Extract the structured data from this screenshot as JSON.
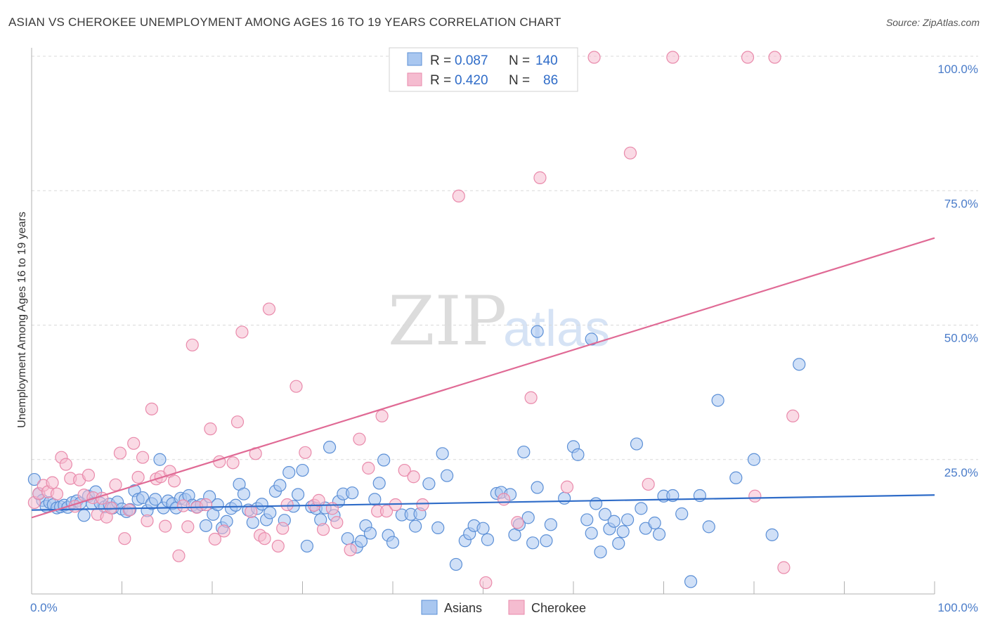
{
  "title": "ASIAN VS CHEROKEE UNEMPLOYMENT AMONG AGES 16 TO 19 YEARS CORRELATION CHART",
  "source": "Source: ZipAtlas.com",
  "watermark": {
    "zip": "ZIP",
    "atlas": "atlas"
  },
  "colors": {
    "asians_fill": "#a9c7f0",
    "asians_stroke": "#5b8fd6",
    "asians_line": "#2f6cc8",
    "cherokee_fill": "#f5bcd0",
    "cherokee_stroke": "#e98aab",
    "cherokee_line": "#e06a95",
    "tick_text": "#4a7cc9",
    "grid": "#d9d9d9"
  },
  "legend": {
    "asians": {
      "r_label": "R =",
      "r_value": "0.087",
      "n_label": "N =",
      "n_value": "140"
    },
    "cherokee": {
      "r_label": "R =",
      "r_value": "0.420",
      "n_label": "N =",
      "n_value": "86"
    }
  },
  "bottom_legend": {
    "asians": "Asians",
    "cherokee": "Cherokee"
  },
  "chart_data": {
    "type": "scatter",
    "title": "ASIAN VS CHEROKEE UNEMPLOYMENT AMONG AGES 16 TO 19 YEARS CORRELATION CHART",
    "xlabel": "",
    "ylabel": "Unemployment Among Ages 16 to 19 years",
    "xlim": [
      0,
      100
    ],
    "ylim": [
      0,
      100
    ],
    "x_tick_labels": [
      "0.0%",
      "100.0%"
    ],
    "y_ticks": [
      25,
      50,
      75,
      100
    ],
    "y_tick_labels": [
      "25.0%",
      "50.0%",
      "75.0%",
      "100.0%"
    ],
    "grid": "horizontal dashed",
    "legend_position": "top-center",
    "series": [
      {
        "name": "Asians",
        "trend": {
          "x": [
            0,
            100
          ],
          "y": [
            15.6,
            18.4
          ]
        },
        "points": [
          [
            0.3,
            21.3
          ],
          [
            0.8,
            18.6
          ],
          [
            1.2,
            17.4
          ],
          [
            1.6,
            16.3
          ],
          [
            2.0,
            17.0
          ],
          [
            2.4,
            16.6
          ],
          [
            2.8,
            16.0
          ],
          [
            3.2,
            16.2
          ],
          [
            3.6,
            16.5
          ],
          [
            4.0,
            16.1
          ],
          [
            4.5,
            17.0
          ],
          [
            5.0,
            17.3
          ],
          [
            5.4,
            16.9
          ],
          [
            5.8,
            14.6
          ],
          [
            6.3,
            18.2
          ],
          [
            6.7,
            16.8
          ],
          [
            7.1,
            19.0
          ],
          [
            7.6,
            16.9
          ],
          [
            8.1,
            16.2
          ],
          [
            8.6,
            16.7
          ],
          [
            9.0,
            16.0
          ],
          [
            9.5,
            17.1
          ],
          [
            10.0,
            15.8
          ],
          [
            10.5,
            15.3
          ],
          [
            10.9,
            15.7
          ],
          [
            11.4,
            19.2
          ],
          [
            11.8,
            17.6
          ],
          [
            12.3,
            17.9
          ],
          [
            12.8,
            15.5
          ],
          [
            13.3,
            16.8
          ],
          [
            13.7,
            17.6
          ],
          [
            14.2,
            25.0
          ],
          [
            14.6,
            16.0
          ],
          [
            15.1,
            17.3
          ],
          [
            15.6,
            16.8
          ],
          [
            16.0,
            16.0
          ],
          [
            16.5,
            17.8
          ],
          [
            17.0,
            17.6
          ],
          [
            17.4,
            18.3
          ],
          [
            17.8,
            16.5
          ],
          [
            18.3,
            16.2
          ],
          [
            18.8,
            16.6
          ],
          [
            19.3,
            12.7
          ],
          [
            19.7,
            18.1
          ],
          [
            20.1,
            14.8
          ],
          [
            20.6,
            16.6
          ],
          [
            21.1,
            12.3
          ],
          [
            21.6,
            13.5
          ],
          [
            22.1,
            15.9
          ],
          [
            22.6,
            16.5
          ],
          [
            23.0,
            20.4
          ],
          [
            23.5,
            18.6
          ],
          [
            24.0,
            15.6
          ],
          [
            24.5,
            13.3
          ],
          [
            25.0,
            15.9
          ],
          [
            25.5,
            16.7
          ],
          [
            26.0,
            13.8
          ],
          [
            26.4,
            15.1
          ],
          [
            27.0,
            19.1
          ],
          [
            27.5,
            20.2
          ],
          [
            28.0,
            13.7
          ],
          [
            28.5,
            22.6
          ],
          [
            29.0,
            16.3
          ],
          [
            29.5,
            18.5
          ],
          [
            30.0,
            23.0
          ],
          [
            30.5,
            8.9
          ],
          [
            31.0,
            16.2
          ],
          [
            31.5,
            15.9
          ],
          [
            32.0,
            13.8
          ],
          [
            32.5,
            16.0
          ],
          [
            33.0,
            27.3
          ],
          [
            33.5,
            14.6
          ],
          [
            34.0,
            17.2
          ],
          [
            34.5,
            18.6
          ],
          [
            35.0,
            10.3
          ],
          [
            35.5,
            18.8
          ],
          [
            36.0,
            8.7
          ],
          [
            36.5,
            9.8
          ],
          [
            37.0,
            12.7
          ],
          [
            37.5,
            11.3
          ],
          [
            38.0,
            17.6
          ],
          [
            38.5,
            20.6
          ],
          [
            39.0,
            24.9
          ],
          [
            39.5,
            10.9
          ],
          [
            40.0,
            9.6
          ],
          [
            41.0,
            14.7
          ],
          [
            42.0,
            14.8
          ],
          [
            42.5,
            12.6
          ],
          [
            43.0,
            14.9
          ],
          [
            44.0,
            20.5
          ],
          [
            45.0,
            12.3
          ],
          [
            45.5,
            26.1
          ],
          [
            46.0,
            22.0
          ],
          [
            47.0,
            5.5
          ],
          [
            48.0,
            9.9
          ],
          [
            48.5,
            11.2
          ],
          [
            49.0,
            12.7
          ],
          [
            50.0,
            12.2
          ],
          [
            50.5,
            10.1
          ],
          [
            51.5,
            18.7
          ],
          [
            52.0,
            18.9
          ],
          [
            53.0,
            18.5
          ],
          [
            53.5,
            11.0
          ],
          [
            54.0,
            12.9
          ],
          [
            54.5,
            26.4
          ],
          [
            55.0,
            14.2
          ],
          [
            55.5,
            9.5
          ],
          [
            56.0,
            19.8
          ],
          [
            57.0,
            9.9
          ],
          [
            57.5,
            12.9
          ],
          [
            59.0,
            17.8
          ],
          [
            60.0,
            27.4
          ],
          [
            60.5,
            25.9
          ],
          [
            61.5,
            13.8
          ],
          [
            62.0,
            11.3
          ],
          [
            62.5,
            16.8
          ],
          [
            63.0,
            7.8
          ],
          [
            63.5,
            14.8
          ],
          [
            64.0,
            12.1
          ],
          [
            64.5,
            13.5
          ],
          [
            65.0,
            9.4
          ],
          [
            65.5,
            11.6
          ],
          [
            66.0,
            13.8
          ],
          [
            67.0,
            27.9
          ],
          [
            67.5,
            15.9
          ],
          [
            68.0,
            12.2
          ],
          [
            69.0,
            13.2
          ],
          [
            69.5,
            11.1
          ],
          [
            70.0,
            18.2
          ],
          [
            71.0,
            18.3
          ],
          [
            72.0,
            14.9
          ],
          [
            73.0,
            2.3
          ],
          [
            74.0,
            18.3
          ],
          [
            75.0,
            12.5
          ],
          [
            76.0,
            36.0
          ],
          [
            78.0,
            21.6
          ],
          [
            80.0,
            25.0
          ],
          [
            82.0,
            11.0
          ],
          [
            85.0,
            42.7
          ],
          [
            56.0,
            48.8
          ],
          [
            62.0,
            47.4
          ]
        ]
      },
      {
        "name": "Cherokee",
        "trend": {
          "x": [
            0,
            100
          ],
          "y": [
            14.2,
            66.2
          ]
        },
        "points": [
          [
            0.3,
            17.0
          ],
          [
            0.8,
            18.7
          ],
          [
            1.3,
            20.2
          ],
          [
            1.8,
            19.0
          ],
          [
            2.3,
            20.7
          ],
          [
            2.8,
            18.6
          ],
          [
            3.3,
            25.4
          ],
          [
            3.8,
            24.1
          ],
          [
            4.3,
            21.5
          ],
          [
            4.8,
            16.3
          ],
          [
            5.3,
            21.2
          ],
          [
            5.8,
            18.4
          ],
          [
            6.3,
            22.1
          ],
          [
            6.8,
            17.9
          ],
          [
            7.3,
            14.8
          ],
          [
            7.8,
            17.8
          ],
          [
            8.3,
            14.3
          ],
          [
            8.8,
            16.0
          ],
          [
            9.3,
            20.3
          ],
          [
            9.8,
            26.2
          ],
          [
            10.3,
            10.3
          ],
          [
            10.8,
            15.6
          ],
          [
            11.3,
            28.0
          ],
          [
            11.8,
            21.7
          ],
          [
            12.3,
            25.4
          ],
          [
            12.8,
            13.6
          ],
          [
            13.3,
            34.4
          ],
          [
            13.8,
            21.4
          ],
          [
            14.3,
            21.8
          ],
          [
            14.8,
            12.6
          ],
          [
            15.3,
            22.8
          ],
          [
            15.8,
            21.0
          ],
          [
            16.3,
            7.1
          ],
          [
            16.8,
            16.4
          ],
          [
            17.3,
            12.5
          ],
          [
            17.8,
            46.3
          ],
          [
            18.3,
            16.1
          ],
          [
            19.3,
            16.6
          ],
          [
            19.8,
            30.7
          ],
          [
            20.3,
            10.2
          ],
          [
            20.8,
            24.6
          ],
          [
            21.3,
            11.7
          ],
          [
            22.3,
            24.4
          ],
          [
            22.8,
            32.0
          ],
          [
            23.3,
            48.7
          ],
          [
            24.3,
            15.3
          ],
          [
            24.8,
            26.1
          ],
          [
            25.3,
            10.9
          ],
          [
            25.8,
            10.3
          ],
          [
            26.3,
            53.0
          ],
          [
            27.3,
            8.9
          ],
          [
            27.8,
            12.2
          ],
          [
            28.3,
            16.6
          ],
          [
            29.3,
            38.6
          ],
          [
            30.3,
            26.3
          ],
          [
            31.3,
            16.5
          ],
          [
            31.8,
            17.4
          ],
          [
            32.3,
            12.0
          ],
          [
            33.3,
            15.9
          ],
          [
            33.8,
            13.3
          ],
          [
            35.3,
            8.2
          ],
          [
            36.3,
            28.8
          ],
          [
            37.3,
            23.4
          ],
          [
            38.3,
            15.4
          ],
          [
            38.8,
            33.1
          ],
          [
            39.3,
            15.4
          ],
          [
            40.3,
            16.6
          ],
          [
            41.3,
            23.0
          ],
          [
            42.3,
            21.8
          ],
          [
            43.3,
            16.6
          ],
          [
            50.3,
            2.1
          ],
          [
            52.3,
            17.6
          ],
          [
            53.8,
            13.3
          ],
          [
            55.3,
            36.5
          ],
          [
            56.3,
            77.4
          ],
          [
            59.3,
            19.9
          ],
          [
            66.3,
            82.0
          ],
          [
            68.3,
            20.4
          ],
          [
            79.3,
            99.8
          ],
          [
            82.3,
            99.8
          ],
          [
            83.3,
            4.9
          ],
          [
            80.1,
            18.2
          ],
          [
            62.3,
            99.8
          ],
          [
            71.0,
            99.8
          ],
          [
            47.3,
            74.0
          ],
          [
            84.3,
            33.1
          ]
        ]
      }
    ]
  }
}
